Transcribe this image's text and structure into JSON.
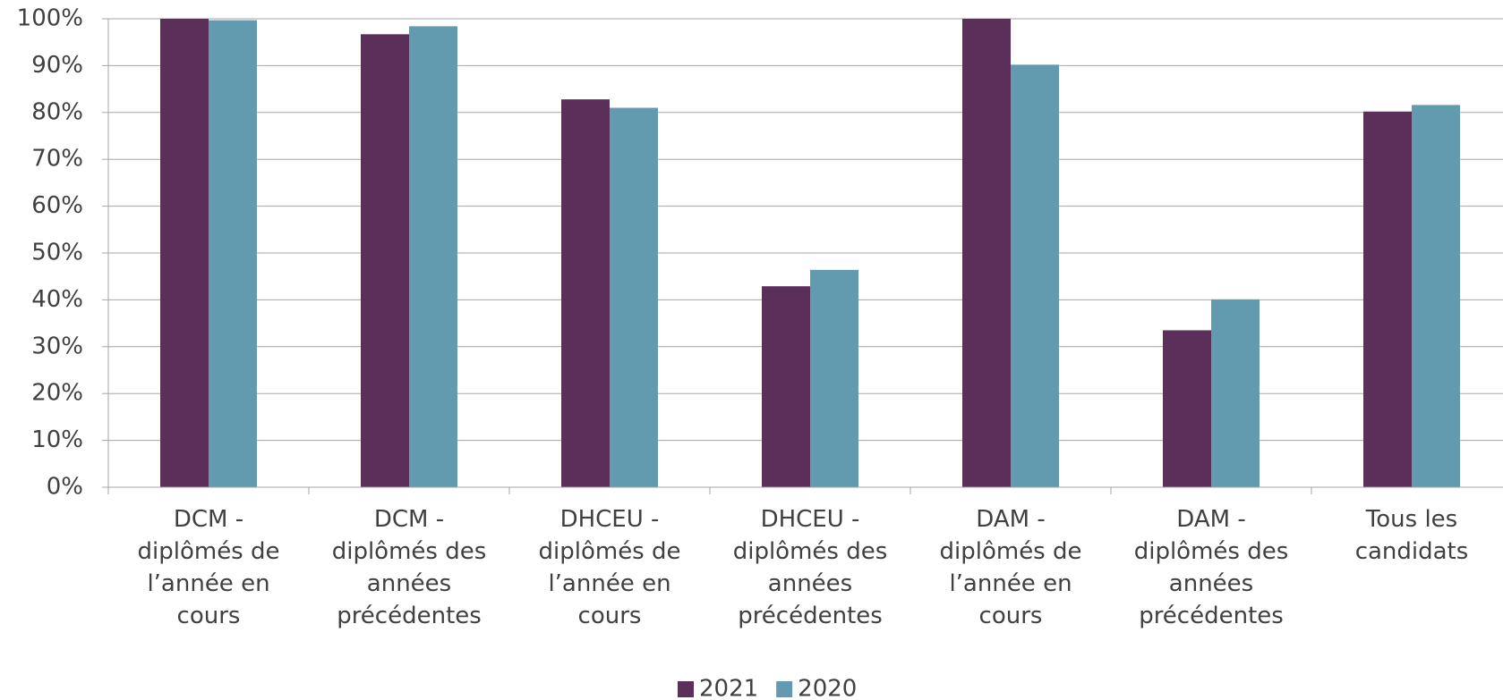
{
  "chart_data": {
    "type": "bar",
    "categories": [
      "DCM - diplômés de l’année en cours",
      "DCM - diplômés des années précédentes",
      "DHCEU - diplômés de l’année en cours",
      "DHCEU - diplômés des années précédentes",
      "DAM - diplômés de l’année en cours",
      "DAM - diplômés des années précédentes",
      "Tous les candidats"
    ],
    "series": [
      {
        "name": "2021",
        "color": "#5c2f5b",
        "values": [
          100,
          96.7,
          82.8,
          42.9,
          100,
          33.5,
          80.2
        ]
      },
      {
        "name": "2020",
        "color": "#629bb0",
        "values": [
          99.7,
          98.4,
          81.0,
          46.4,
          90.2,
          40.1,
          81.6
        ]
      }
    ],
    "ylim": [
      0,
      100
    ],
    "yticks": [
      {
        "value": 0,
        "label": "0%"
      },
      {
        "value": 10,
        "label": "10%"
      },
      {
        "value": 20,
        "label": "20%"
      },
      {
        "value": 30,
        "label": "30%"
      },
      {
        "value": 40,
        "label": "40%"
      },
      {
        "value": 50,
        "label": "50%"
      },
      {
        "value": 60,
        "label": "60%"
      },
      {
        "value": 70,
        "label": "70%"
      },
      {
        "value": 80,
        "label": "80%"
      },
      {
        "value": 90,
        "label": "90%"
      },
      {
        "value": 100,
        "label": "100%"
      }
    ],
    "grid": true,
    "legend": "bottom"
  }
}
